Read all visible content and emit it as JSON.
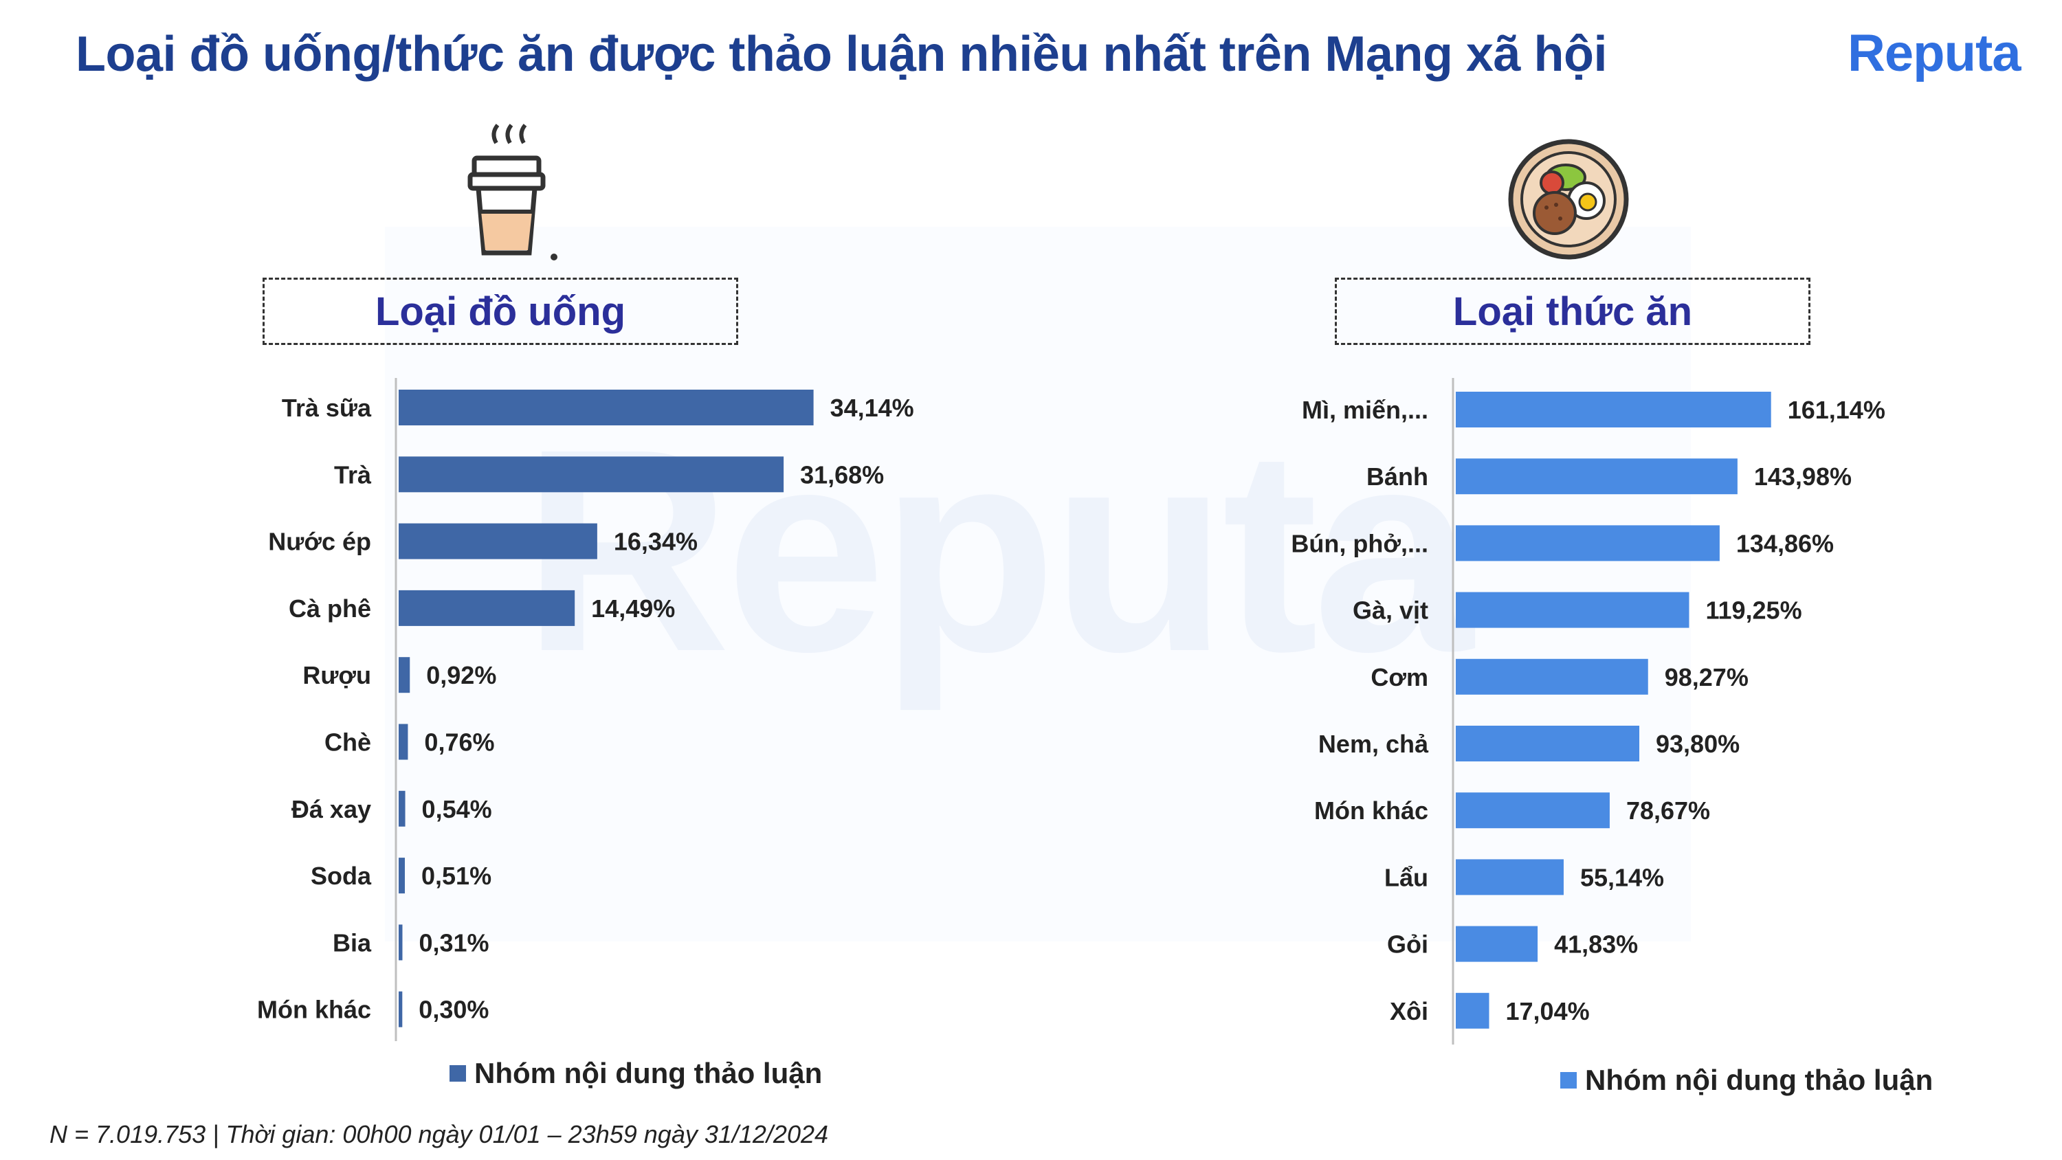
{
  "title": "Loại đồ uống/thức ăn được thảo luận nhiều nhất trên Mạng xã hội",
  "brand": "Reputa",
  "footnote": "N = 7.019.753 | Thời gian: 00h00 ngày 01/01 – 23h59 ngày 31/12/2024",
  "icons": {
    "drink": "coffee-cup-icon",
    "food": "food-plate-icon"
  },
  "colors": {
    "title": "#1d3f8f",
    "drink_bar": "#3f67a6",
    "food_bar": "#4a8be3",
    "panel_title": "#2b2f9a"
  },
  "chart_data": [
    {
      "type": "bar",
      "orientation": "horizontal",
      "title": "Loại đồ uống",
      "categories": [
        "Trà sữa",
        "Trà",
        "Nước ép",
        "Cà phê",
        "Rượu",
        "Chè",
        "Đá xay",
        "Soda",
        "Bia",
        "Món khác"
      ],
      "series": [
        {
          "name": "Nhóm nội dung thảo luận",
          "values": [
            34.14,
            31.68,
            16.34,
            14.49,
            0.92,
            0.76,
            0.54,
            0.51,
            0.31,
            0.3
          ],
          "labels": [
            "34,14%",
            "31,68%",
            "16,34%",
            "14,49%",
            "0,92%",
            "0,76%",
            "0,54%",
            "0,51%",
            "0,31%",
            "0,30%"
          ]
        }
      ],
      "xlim": [
        0,
        100
      ],
      "grid": false,
      "legend": "bottom"
    },
    {
      "type": "bar",
      "orientation": "horizontal",
      "title": "Loại thức ăn",
      "categories": [
        "Mì, miến,...",
        "Bánh",
        "Bún, phở,...",
        "Gà, vịt",
        "Cơm",
        "Nem, chả",
        "Món khác",
        "Lẩu",
        "Gỏi",
        "Xôi"
      ],
      "series": [
        {
          "name": "Nhóm nội dung thảo luận",
          "values": [
            161.14,
            143.98,
            134.86,
            119.25,
            98.27,
            93.8,
            78.67,
            55.14,
            41.83,
            17.04
          ],
          "labels": [
            "161,14%",
            "143,98%",
            "134,86%",
            "119,25%",
            "98,27%",
            "93,80%",
            "78,67%",
            "55,14%",
            "41,83%",
            "17,04%"
          ]
        }
      ],
      "xlim": [
        0,
        600
      ],
      "grid": false,
      "legend": "bottom"
    }
  ]
}
